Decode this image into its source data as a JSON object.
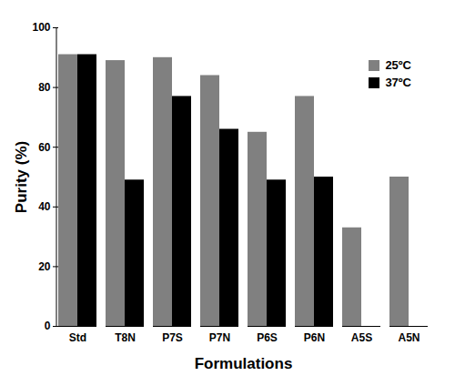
{
  "chart_data": {
    "type": "bar",
    "x_label": "Formulations",
    "y_label": "Purity (%)",
    "categories": [
      "Std",
      "T8N",
      "P7S",
      "P7N",
      "P6S",
      "P6N",
      "A5S",
      "A5N"
    ],
    "series": [
      {
        "name": "25ºC",
        "color": "#808080",
        "values": [
          91,
          89,
          90,
          84,
          65,
          77,
          33,
          50
        ]
      },
      {
        "name": "37ºC",
        "color": "#000000",
        "values": [
          91,
          49,
          77,
          66,
          49,
          50,
          null,
          null
        ]
      }
    ],
    "ylim": [
      0,
      100
    ],
    "yticks": [
      0,
      20,
      40,
      60,
      80,
      100
    ],
    "grid": false,
    "legend": "top-right"
  }
}
